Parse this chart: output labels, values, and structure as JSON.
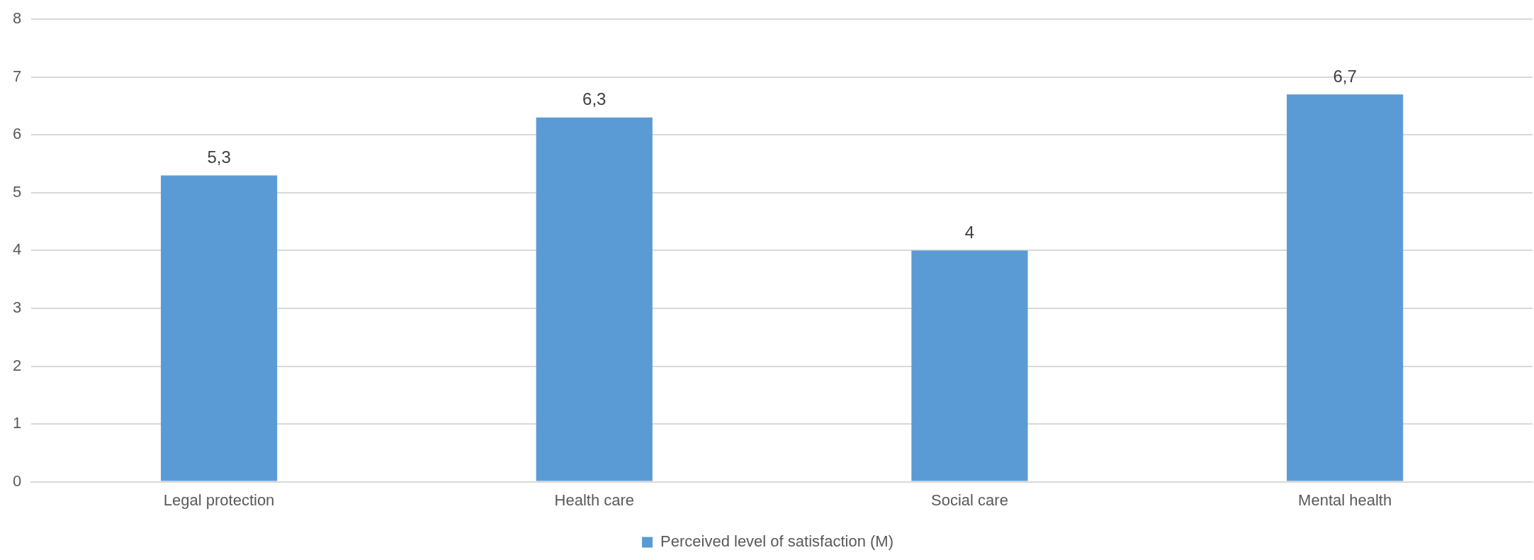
{
  "chart_data": {
    "type": "bar",
    "categories": [
      "Legal protection",
      "Health care",
      "Social care",
      "Mental health"
    ],
    "series": [
      {
        "name": "Perceived level of satisfaction (M)",
        "color": "#5b9bd5",
        "values": [
          5.3,
          6.3,
          4,
          6.7
        ],
        "value_labels": [
          "5,3",
          "6,3",
          "4",
          "6,7"
        ]
      }
    ],
    "ylim": [
      0,
      8
    ],
    "yticks": [
      0,
      1,
      2,
      3,
      4,
      5,
      6,
      7,
      8
    ],
    "grid": "y",
    "legend": "bottom"
  }
}
